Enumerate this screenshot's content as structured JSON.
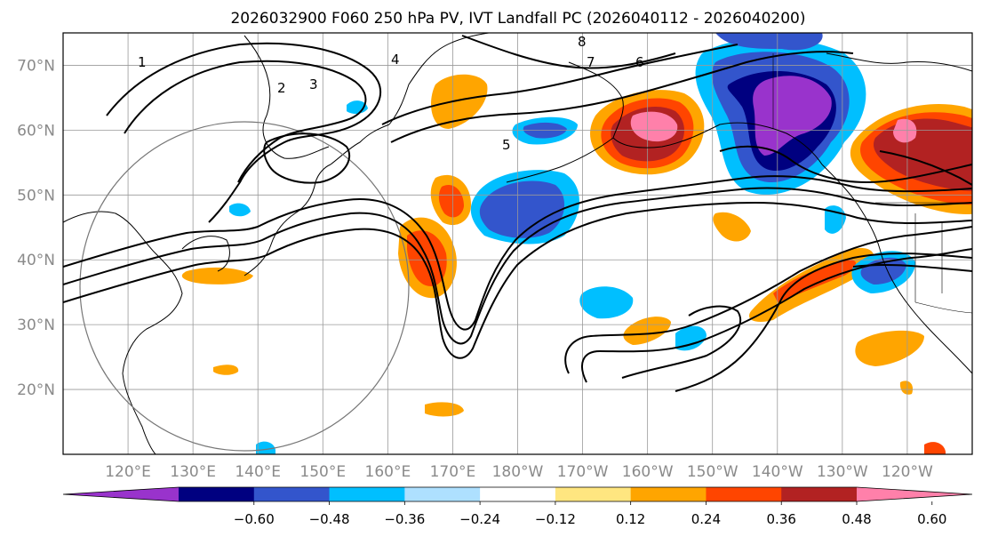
{
  "figure": {
    "title": "2026032900 F060 250 hPa PV, IVT Landfall PC (2026040112 - 2026040200)"
  },
  "map": {
    "lat_labels": [
      "70°N",
      "60°N",
      "50°N",
      "40°N",
      "30°N",
      "20°N"
    ],
    "lon_labels": [
      "120°E",
      "130°E",
      "140°E",
      "150°E",
      "160°E",
      "170°E",
      "180°W",
      "170°W",
      "160°W",
      "150°W",
      "140°W",
      "130°W",
      "120°W"
    ],
    "lat_values": [
      70,
      60,
      50,
      40,
      30,
      20
    ],
    "lon_values": [
      120,
      130,
      140,
      150,
      160,
      170,
      180,
      190,
      200,
      210,
      220,
      230,
      240
    ],
    "extent": {
      "lon_min": 110,
      "lon_max": 250,
      "lat_min": 10,
      "lat_max": 75
    },
    "pv_contour_labels": [
      "1",
      "2",
      "3",
      "4",
      "5",
      "6",
      "7",
      "8"
    ]
  },
  "colorbar": {
    "tick_labels": [
      "−0.60",
      "−0.48",
      "−0.36",
      "−0.24",
      "−0.12",
      "0.12",
      "0.24",
      "0.36",
      "0.48",
      "0.60"
    ],
    "levels": [
      -0.6,
      -0.48,
      -0.36,
      -0.24,
      -0.12,
      0.12,
      0.24,
      0.36,
      0.48,
      0.6
    ],
    "colors": [
      "#9933cc",
      "#000080",
      "#3355cc",
      "#00bfff",
      "#aee0ff",
      "#ffffff",
      "#ffe680",
      "#ffa500",
      "#ff4500",
      "#b22222",
      "#ff80aa"
    ]
  }
}
